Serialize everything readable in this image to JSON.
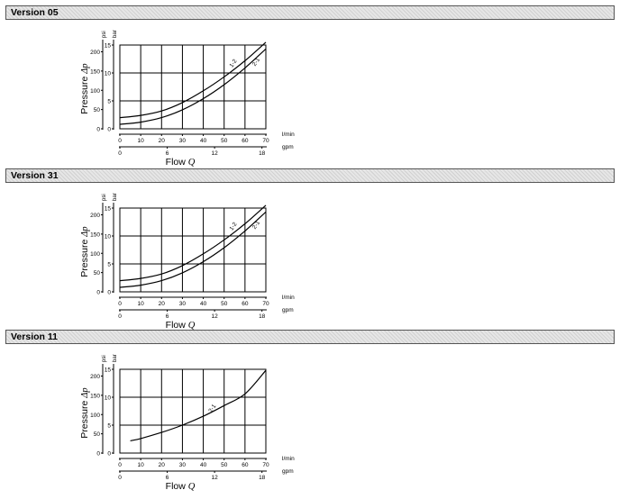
{
  "sections": [
    {
      "title": "Version 05"
    },
    {
      "title": "Version 31"
    },
    {
      "title": "Version 11"
    }
  ],
  "colors": {
    "header_bg": "#e6e6e6",
    "header_border": "#555555",
    "line": "#000000"
  },
  "chart_data": [
    {
      "type": "line",
      "title": "",
      "ylabel": "Pressure Δp",
      "xlabel": "Flow Q",
      "y_unit_primary": "bar",
      "y_unit_secondary": "psi",
      "x_unit_primary": "l/min",
      "x_unit_secondary": "gpm",
      "xlim": [
        0,
        70
      ],
      "ylim": [
        0,
        15
      ],
      "x_ticks": [
        "0",
        "10",
        "20",
        "30",
        "40",
        "50",
        "60",
        "70"
      ],
      "y_ticks": [
        "0",
        "5",
        "10",
        "15"
      ],
      "x_secondary_ticks": [
        "0",
        "6",
        "12",
        "18"
      ],
      "y_secondary_ticks": [
        "0",
        "50",
        "100",
        "150",
        "200"
      ],
      "grid": true,
      "series": [
        {
          "name": "1-2",
          "x": [
            0,
            10,
            20,
            30,
            40,
            50,
            60,
            70
          ],
          "y": [
            2.0,
            2.4,
            3.2,
            4.7,
            6.8,
            9.3,
            12.2,
            15.5
          ]
        },
        {
          "name": "2-1",
          "x": [
            0,
            10,
            20,
            30,
            40,
            50,
            60,
            70
          ],
          "y": [
            0.8,
            1.2,
            2.0,
            3.4,
            5.4,
            7.9,
            10.9,
            14.3
          ]
        }
      ]
    },
    {
      "type": "line",
      "title": "",
      "ylabel": "Pressure Δp",
      "xlabel": "Flow Q",
      "y_unit_primary": "bar",
      "y_unit_secondary": "psi",
      "x_unit_primary": "l/min",
      "x_unit_secondary": "gpm",
      "xlim": [
        0,
        70
      ],
      "ylim": [
        0,
        15
      ],
      "x_ticks": [
        "0",
        "10",
        "20",
        "30",
        "40",
        "50",
        "60",
        "70"
      ],
      "y_ticks": [
        "0",
        "5",
        "10",
        "15"
      ],
      "x_secondary_ticks": [
        "0",
        "6",
        "12",
        "18"
      ],
      "y_secondary_ticks": [
        "0",
        "50",
        "100",
        "150",
        "200"
      ],
      "grid": true,
      "series": [
        {
          "name": "1-2",
          "x": [
            0,
            10,
            20,
            30,
            40,
            50,
            60,
            70
          ],
          "y": [
            2.0,
            2.4,
            3.2,
            4.7,
            6.8,
            9.3,
            12.2,
            15.5
          ]
        },
        {
          "name": "2-1",
          "x": [
            0,
            10,
            20,
            30,
            40,
            50,
            60,
            70
          ],
          "y": [
            0.8,
            1.2,
            2.0,
            3.4,
            5.4,
            7.9,
            10.9,
            14.3
          ]
        }
      ]
    },
    {
      "type": "line",
      "title": "",
      "ylabel": "Pressure Δp",
      "xlabel": "Flow Q",
      "y_unit_primary": "bar",
      "y_unit_secondary": "psi",
      "x_unit_primary": "l/min",
      "x_unit_secondary": "gpm",
      "xlim": [
        0,
        70
      ],
      "ylim": [
        0,
        15
      ],
      "x_ticks": [
        "0",
        "10",
        "20",
        "30",
        "40",
        "50",
        "60",
        "70"
      ],
      "y_ticks": [
        "0",
        "5",
        "10",
        "15"
      ],
      "x_secondary_ticks": [
        "0",
        "6",
        "12",
        "18"
      ],
      "y_secondary_ticks": [
        "0",
        "50",
        "100",
        "150",
        "200"
      ],
      "grid": true,
      "series": [
        {
          "name": "2-1",
          "x": [
            5,
            10,
            20,
            30,
            40,
            50,
            60,
            70
          ],
          "y": [
            2.2,
            2.6,
            3.7,
            5.0,
            6.6,
            8.5,
            10.6,
            14.8
          ]
        }
      ]
    }
  ]
}
